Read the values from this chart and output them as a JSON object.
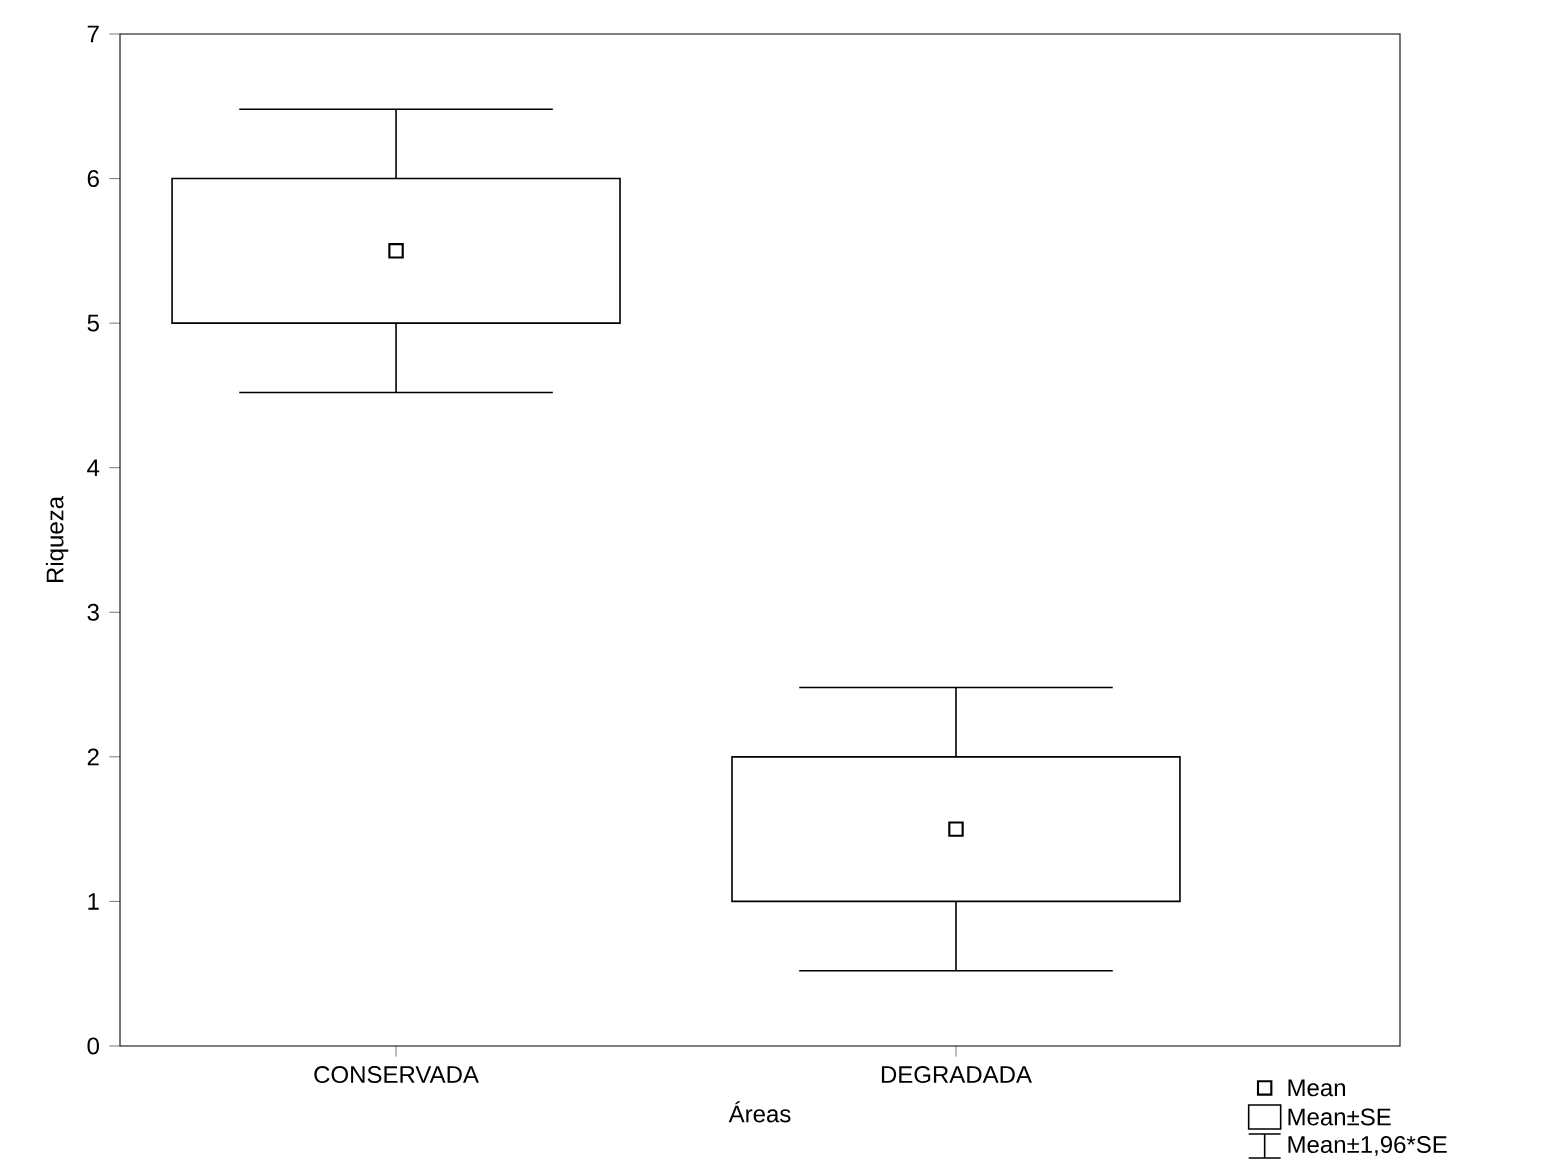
{
  "chart_data": {
    "type": "box",
    "xlabel": "Áreas",
    "ylabel": "Riqueza",
    "categories": [
      "CONSERVADA",
      "DEGRADADA"
    ],
    "ylim": [
      0,
      7
    ],
    "yticks": [
      0,
      1,
      2,
      3,
      4,
      5,
      6,
      7
    ],
    "marker": "square",
    "boxes": [
      {
        "low": 4.52,
        "q1": 5,
        "q3": 6,
        "high": 6.48,
        "mean": 5.5
      },
      {
        "low": 0.52,
        "q1": 1,
        "q3": 2,
        "high": 2.48,
        "mean": 1.5
      }
    ],
    "annotations": [
      "Mean",
      "Mean±SE",
      "Mean±1,96*SE"
    ]
  }
}
